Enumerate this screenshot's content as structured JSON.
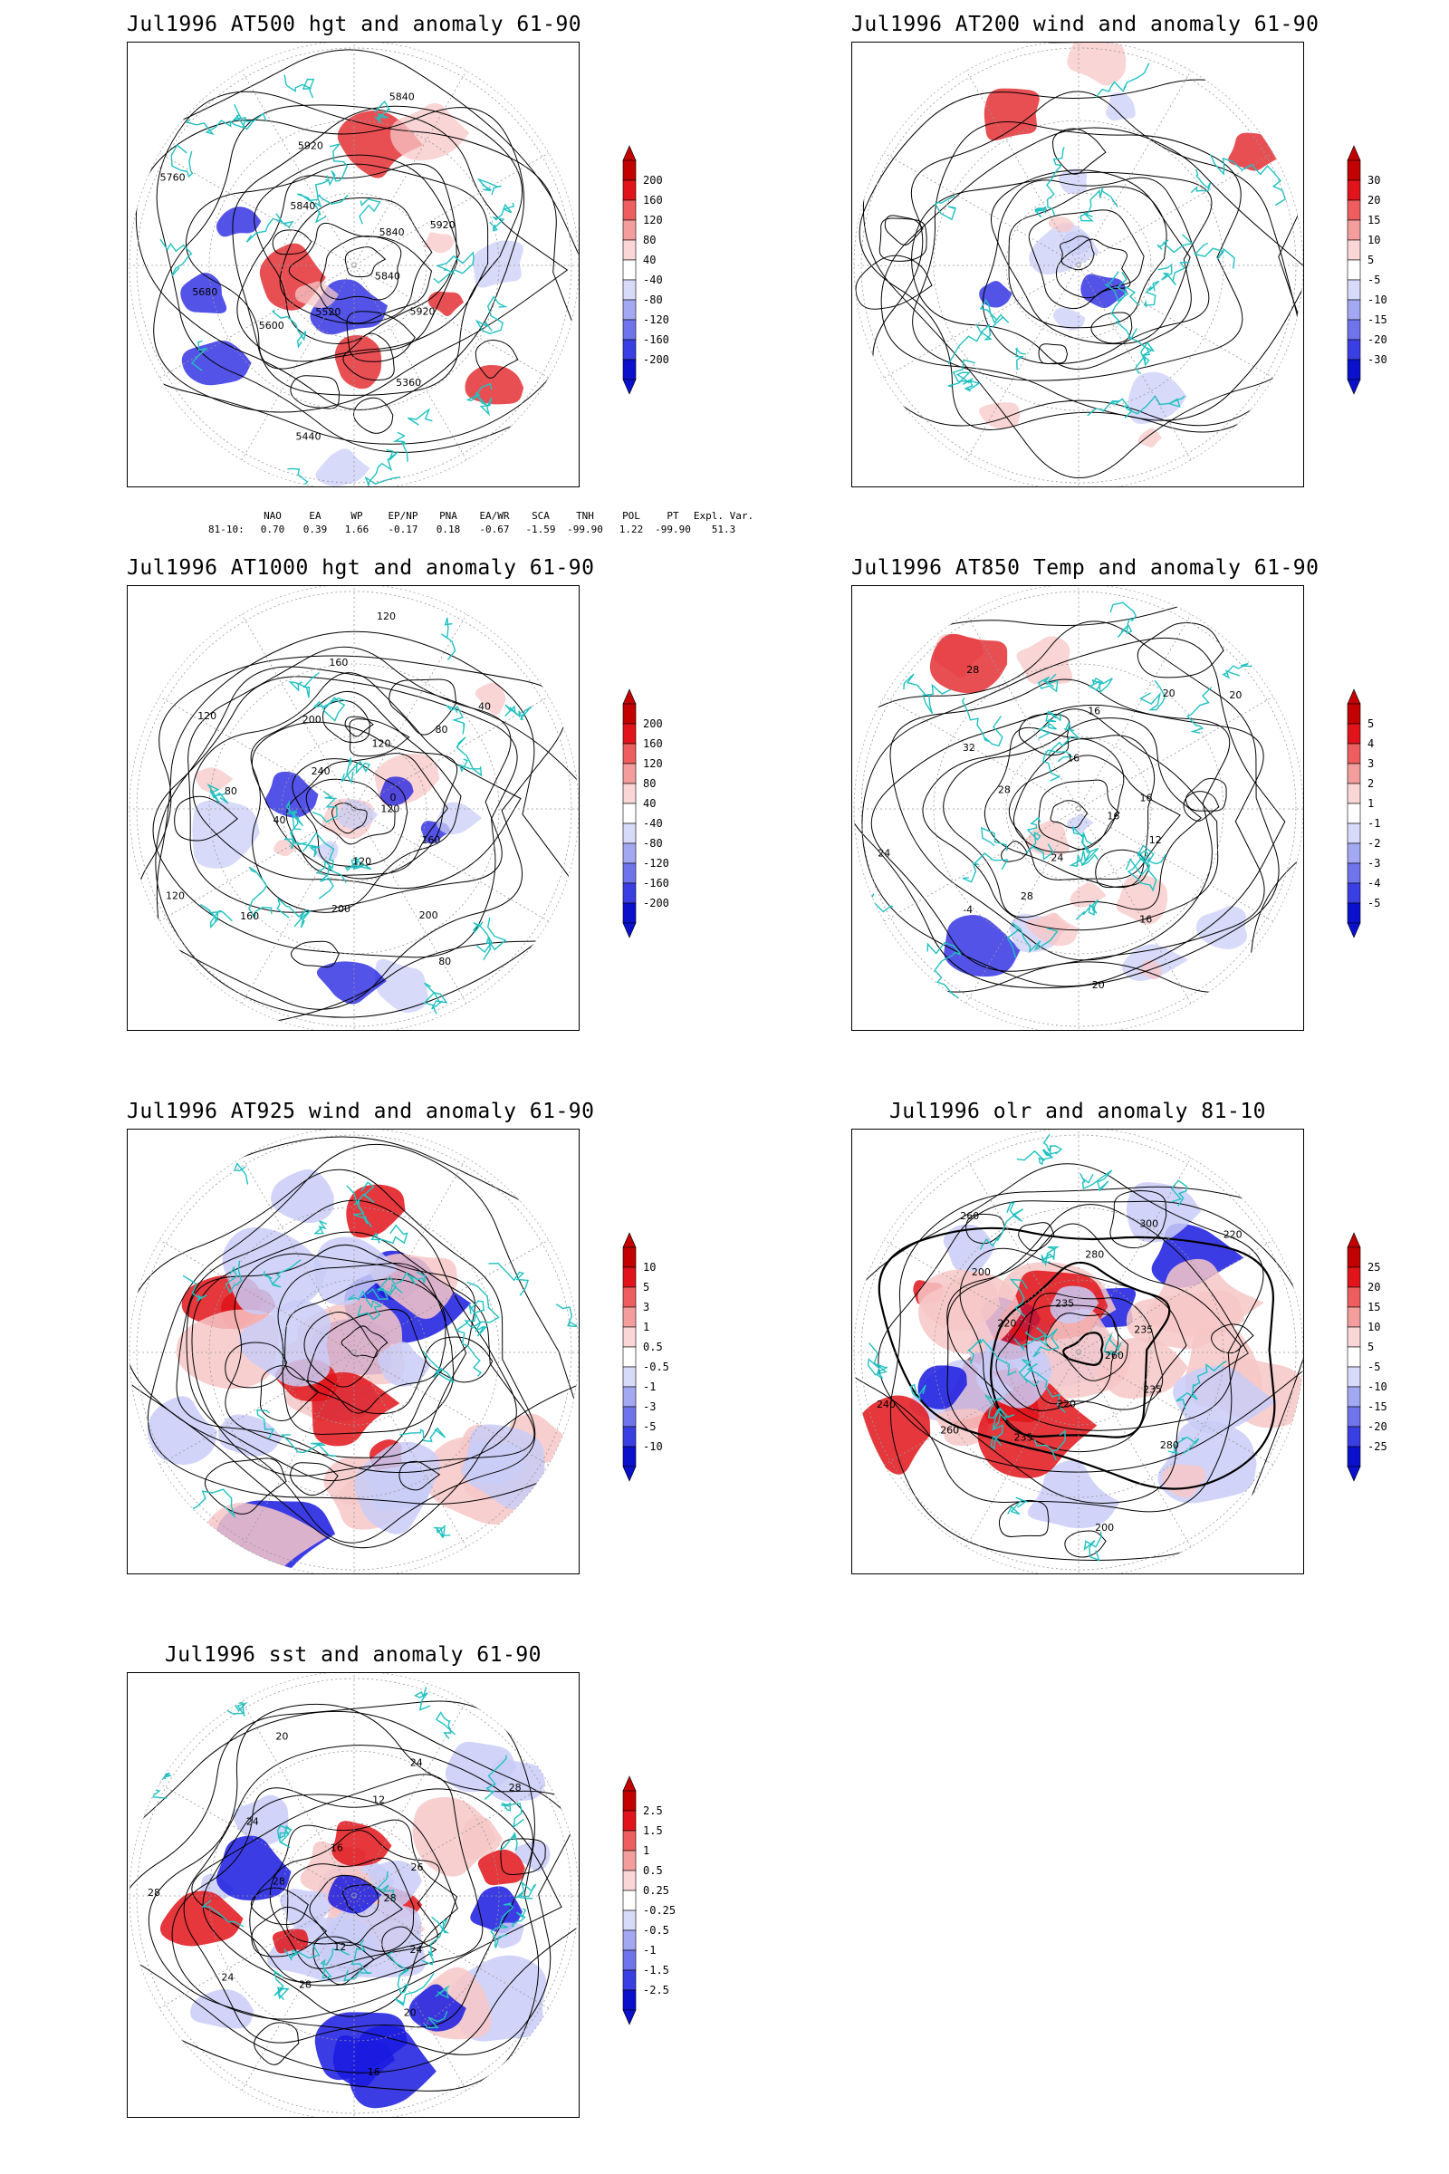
{
  "panels": [
    {
      "id": "at500",
      "title": "Jul1996 AT500 hgt and anomaly 61-90",
      "colorbar": [
        "200",
        "160",
        "120",
        "80",
        "40",
        "-40",
        "-80",
        "-120",
        "-160",
        "-200"
      ],
      "contour_labels": [
        "5840",
        "5920",
        "5360",
        "5440",
        "5520",
        "5600",
        "5680",
        "5760",
        "5840",
        "5920",
        "5840",
        "5840",
        "5920"
      ],
      "index_table": {
        "label": "81-10:",
        "headers": [
          "NAO",
          "EA",
          "WP",
          "EP/NP",
          "PNA",
          "EA/WR",
          "SCA",
          "TNH",
          "POL",
          "PT",
          "Expl. Var."
        ],
        "values": [
          "0.70",
          "0.39",
          "1.66",
          "-0.17",
          "0.18",
          "-0.67",
          "-1.59",
          "-99.90",
          "1.22",
          "-99.90",
          "51.3"
        ]
      }
    },
    {
      "id": "at200",
      "title": "Jul1996 AT200 wind and anomaly 61-90",
      "colorbar": [
        "30",
        "20",
        "15",
        "10",
        "5",
        "-5",
        "-10",
        "-15",
        "-20",
        "-30"
      ],
      "contour_labels": []
    },
    {
      "id": "at1000",
      "title": "Jul1996 AT1000 hgt and anomaly 61-90",
      "colorbar": [
        "200",
        "160",
        "120",
        "80",
        "40",
        "-40",
        "-80",
        "-120",
        "-160",
        "-200"
      ],
      "contour_labels": [
        "120",
        "160",
        "200",
        "80",
        "120",
        "200",
        "160",
        "120",
        "40",
        "80",
        "120",
        "240",
        "200",
        "160",
        "120",
        "120",
        "80",
        "40",
        "0"
      ]
    },
    {
      "id": "at850",
      "title": "Jul1996 AT850 Temp and anomaly 61-90",
      "colorbar": [
        "5",
        "4",
        "3",
        "2",
        "1",
        "-1",
        "-2",
        "-3",
        "-4",
        "-5"
      ],
      "contour_labels": [
        "16",
        "12",
        "16",
        "20",
        "24",
        "28",
        "-4",
        "24",
        "28",
        "32",
        "28",
        "16",
        "16",
        "20",
        "20",
        "16"
      ]
    },
    {
      "id": "at925",
      "title": "Jul1996 AT925 wind and anomaly 61-90",
      "colorbar": [
        "10",
        "5",
        "3",
        "1",
        "0.5",
        "-0.5",
        "-1",
        "-3",
        "-5",
        "-10"
      ],
      "contour_labels": []
    },
    {
      "id": "olr",
      "title": "Jul1996 olr and anomaly 81-10",
      "colorbar": [
        "25",
        "20",
        "15",
        "10",
        "5",
        "-5",
        "-10",
        "-15",
        "-20",
        "-25"
      ],
      "contour_labels": [
        "260",
        "235",
        "280",
        "200",
        "220",
        "235",
        "260",
        "240",
        "220",
        "200",
        "260",
        "235",
        "280",
        "300",
        "220",
        "235"
      ]
    },
    {
      "id": "sst",
      "title": "Jul1996 sst and anomaly 61-90",
      "colorbar": [
        "2.5",
        "1.5",
        "1",
        "0.5",
        "0.25",
        "-0.25",
        "-0.5",
        "-1",
        "-1.5",
        "-2.5"
      ],
      "contour_labels": [
        "28",
        "24",
        "20",
        "16",
        "12",
        "28",
        "24",
        "28",
        "28",
        "24",
        "20",
        "16",
        "12",
        "24",
        "28",
        "26"
      ]
    }
  ],
  "colors": {
    "coastline": "#22c1c1",
    "contour": "#000000",
    "pos_strong": "#e0141a",
    "pos_light": "#f7c7c7",
    "neg_light": "#c9cdf7",
    "neg_strong": "#1a1ae0"
  }
}
